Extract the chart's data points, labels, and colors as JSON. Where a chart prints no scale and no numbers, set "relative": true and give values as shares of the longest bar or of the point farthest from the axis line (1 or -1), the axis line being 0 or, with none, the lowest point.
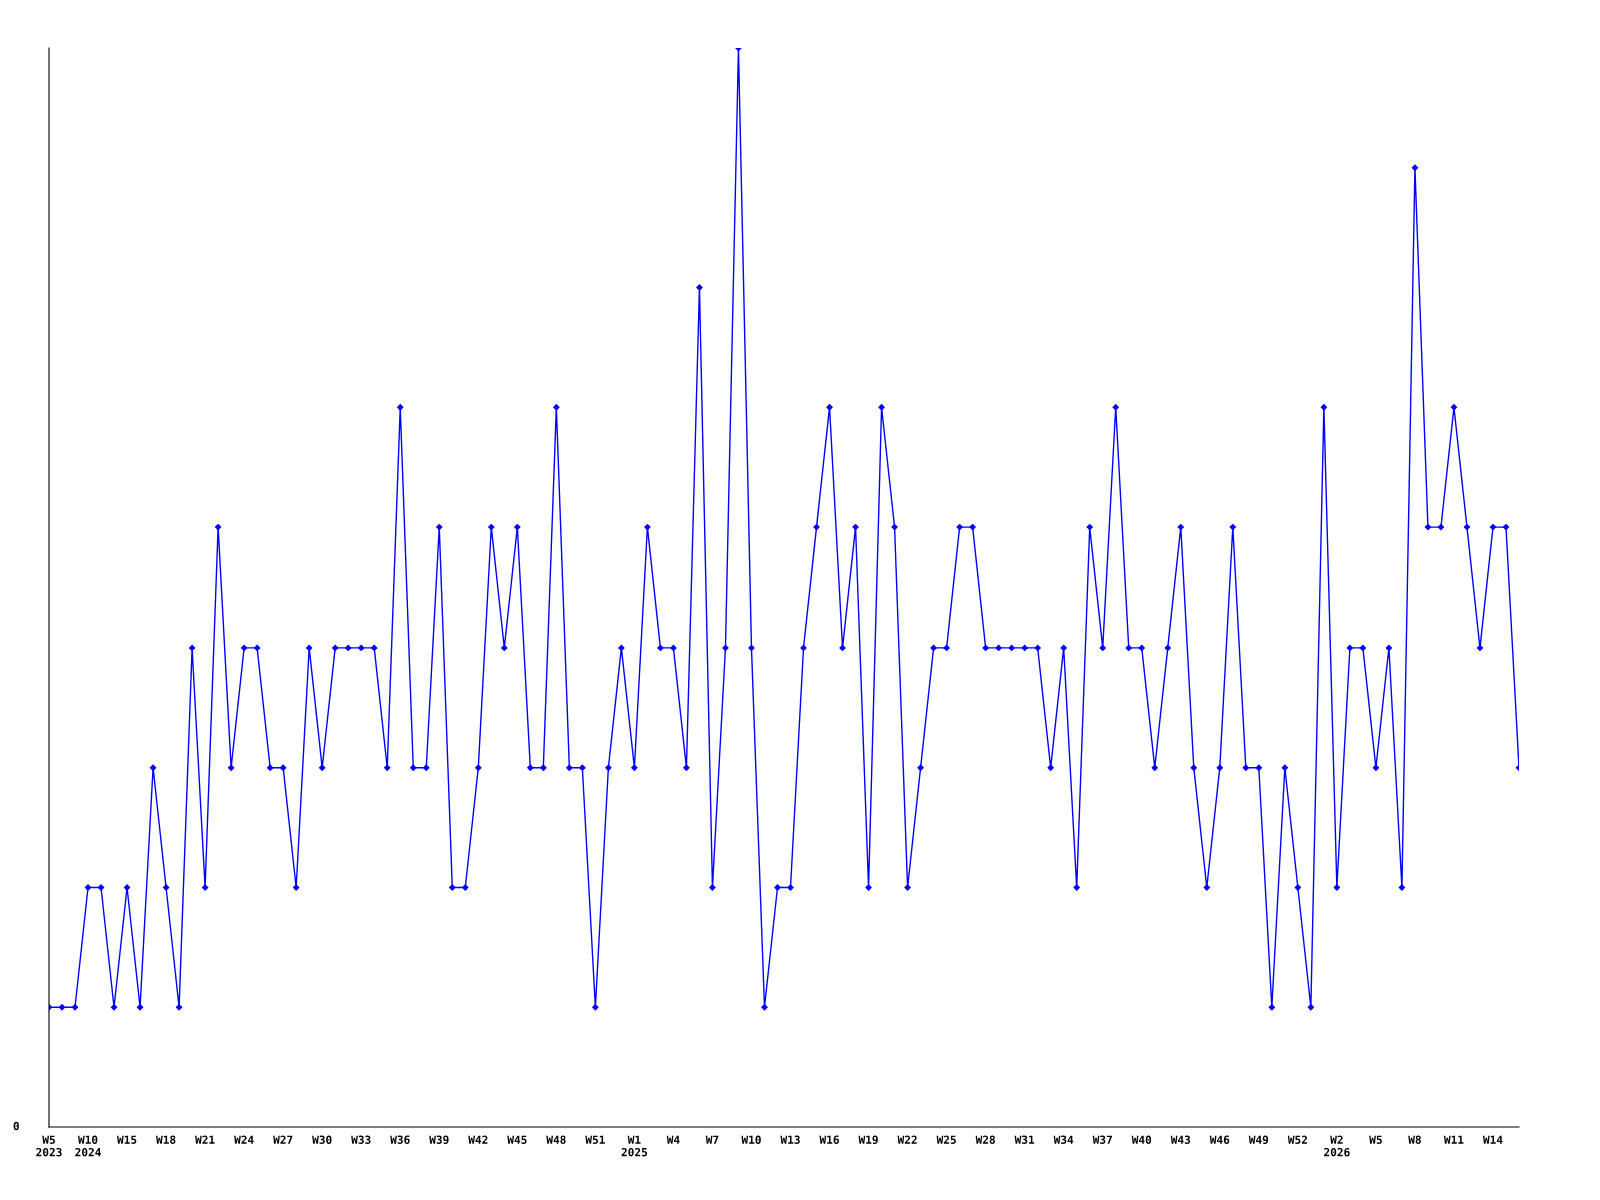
{
  "chart_data": {
    "type": "line",
    "relative": true,
    "marker": "diamond",
    "grid": false,
    "legend": false,
    "categories": [
      "W5\n2023",
      null,
      null,
      "W10\n2024",
      null,
      null,
      "W15",
      null,
      null,
      "W18",
      null,
      null,
      "W21",
      null,
      null,
      "W24",
      null,
      null,
      "W27",
      null,
      null,
      "W30",
      null,
      null,
      "W33",
      null,
      null,
      "W36",
      null,
      null,
      "W39",
      null,
      null,
      "W42",
      null,
      null,
      "W45",
      null,
      null,
      "W48",
      null,
      null,
      "W51",
      null,
      null,
      "W1\n2025",
      null,
      null,
      "W4",
      null,
      null,
      "W7",
      null,
      null,
      "W10",
      null,
      null,
      "W13",
      null,
      null,
      "W16",
      null,
      null,
      "W19",
      null,
      null,
      "W22",
      null,
      null,
      "W25",
      null,
      null,
      "W28",
      null,
      null,
      "W31",
      null,
      null,
      "W34",
      null,
      null,
      "W37",
      null,
      null,
      "W40",
      null,
      null,
      "W43",
      null,
      null,
      "W46",
      null,
      null,
      "W49",
      null,
      null,
      "W52",
      null,
      null,
      "W2\n2026",
      null,
      null,
      "W5",
      null,
      null,
      "W8",
      null,
      null,
      "W11",
      null,
      null,
      "W14",
      null,
      null
    ],
    "series": [
      {
        "color": "#0000ff",
        "values": [
          0.111,
          0.111,
          0.111,
          0.222,
          0.222,
          0.111,
          0.222,
          0.111,
          0.333,
          0.222,
          0.111,
          0.444,
          0.222,
          0.556,
          0.333,
          0.444,
          0.444,
          0.333,
          0.333,
          0.222,
          0.444,
          0.333,
          0.444,
          0.444,
          0.444,
          0.444,
          0.333,
          0.667,
          0.333,
          0.333,
          0.556,
          0.222,
          0.222,
          0.333,
          0.556,
          0.444,
          0.556,
          0.333,
          0.333,
          0.667,
          0.333,
          0.333,
          0.111,
          0.333,
          0.444,
          0.333,
          0.556,
          0.444,
          0.444,
          0.333,
          0.778,
          0.222,
          0.444,
          1,
          0.444,
          0.111,
          0.222,
          0.222,
          0.444,
          0.556,
          0.667,
          0.444,
          0.556,
          0.222,
          0.667,
          0.556,
          0.222,
          0.333,
          0.444,
          0.444,
          0.556,
          0.556,
          0.444,
          0.444,
          0.444,
          0.444,
          0.444,
          0.333,
          0.444,
          0.222,
          0.556,
          0.444,
          0.667,
          0.444,
          0.444,
          0.333,
          0.444,
          0.556,
          0.333,
          0.222,
          0.333,
          0.556,
          0.333,
          0.333,
          0.111,
          0.333,
          0.222,
          0.111,
          0.667,
          0.222,
          0.444,
          0.444,
          0.333,
          0.444,
          0.222,
          0.889,
          0.556,
          0.556,
          0.667,
          0.556,
          0.444,
          0.556,
          0.556,
          0.333
        ]
      }
    ],
    "annotations": [
      "0"
    ]
  }
}
